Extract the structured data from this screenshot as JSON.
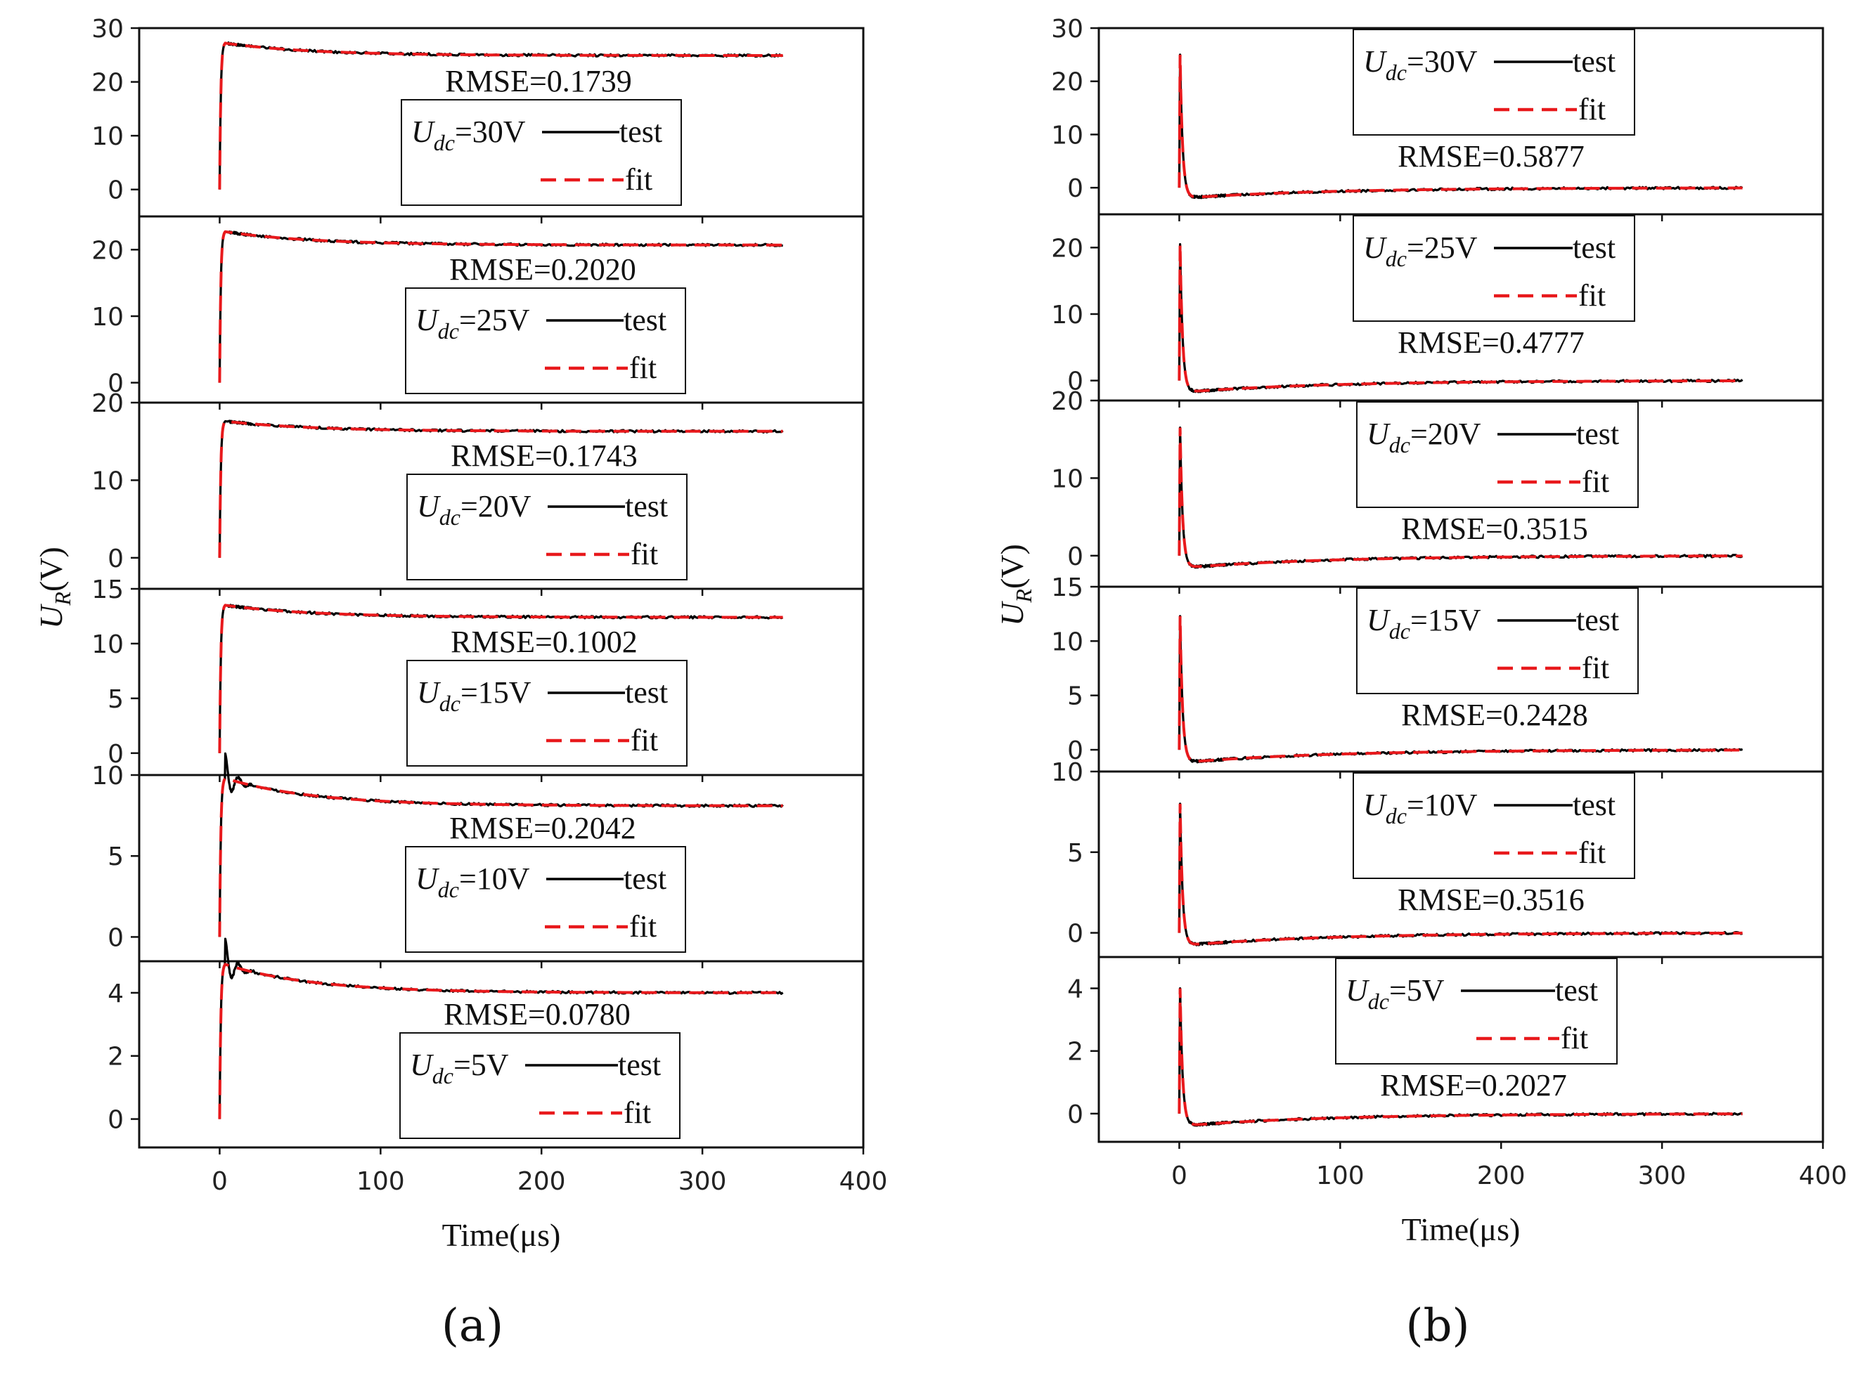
{
  "figure": {
    "panel_labels": [
      "(a)",
      "(b)"
    ],
    "xlabel": "Time(μs)",
    "ylabel_main": "U",
    "ylabel_sub": "R",
    "ylabel_unit": "(V)",
    "legend_symbol_main": "U",
    "legend_symbol_sub": "dc",
    "colors": {
      "test": "#000000",
      "fit": "#e8191c"
    }
  },
  "chart_data": [
    {
      "type": "line",
      "panel": "(a)",
      "xlabel": "Time(μs)",
      "ylabel": "U_R(V)",
      "xlim": [
        -50,
        400
      ],
      "xticks": [
        0,
        100,
        200,
        300,
        400
      ],
      "series_names": [
        "test",
        "fit"
      ],
      "subplots": [
        {
          "udc": "=30V",
          "udc_value": 30,
          "rmse": "RMSE=0.1739",
          "ylim": [
            -5,
            30
          ],
          "yticks": [
            0,
            10,
            20,
            30
          ],
          "peak": 27.2,
          "steady": 24.9
        },
        {
          "udc": "=25V",
          "udc_value": 25,
          "rmse": "RMSE=0.2020",
          "ylim": [
            -3,
            25
          ],
          "yticks": [
            0,
            10,
            20
          ],
          "peak": 22.7,
          "steady": 20.7
        },
        {
          "udc": "=20V",
          "udc_value": 20,
          "rmse": "RMSE=0.1743",
          "ylim": [
            -4,
            20
          ],
          "yticks": [
            0,
            10,
            20
          ],
          "peak": 17.6,
          "steady": 16.3
        },
        {
          "udc": "=15V",
          "udc_value": 15,
          "rmse": "RMSE=0.1002",
          "ylim": [
            -2,
            15
          ],
          "yticks": [
            0,
            5,
            10,
            15
          ],
          "peak": 13.5,
          "steady": 12.4
        },
        {
          "udc": "=10V",
          "udc_value": 10,
          "rmse": "RMSE=0.2042",
          "ylim": [
            -1.5,
            10
          ],
          "yticks": [
            0,
            5,
            10
          ],
          "peak": 9.8,
          "steady": 8.1
        },
        {
          "udc": "=5V",
          "udc_value": 5,
          "rmse": "RMSE=0.0780",
          "ylim": [
            -0.9,
            5
          ],
          "yticks": [
            0,
            2,
            4
          ],
          "peak": 4.9,
          "steady": 4.0
        }
      ]
    },
    {
      "type": "line",
      "panel": "(b)",
      "xlabel": "Time(μs)",
      "ylabel": "U_R(V)",
      "xlim": [
        -50,
        400
      ],
      "xticks": [
        0,
        100,
        200,
        300,
        400
      ],
      "series_names": [
        "test",
        "fit"
      ],
      "subplots": [
        {
          "udc": "=30V",
          "udc_value": 30,
          "rmse": "RMSE=0.5877",
          "ylim": [
            -5,
            30
          ],
          "yticks": [
            0,
            10,
            20,
            30
          ],
          "spike": 25.0,
          "undershoot": -2.0
        },
        {
          "udc": "=25V",
          "udc_value": 25,
          "rmse": "RMSE=0.4777",
          "ylim": [
            -3,
            25
          ],
          "yticks": [
            0,
            10,
            20
          ],
          "spike": 20.5,
          "undershoot": -1.8
        },
        {
          "udc": "=20V",
          "udc_value": 20,
          "rmse": "RMSE=0.3515",
          "ylim": [
            -4,
            20
          ],
          "yticks": [
            0,
            10,
            20
          ],
          "spike": 16.5,
          "undershoot": -1.6
        },
        {
          "udc": "=15V",
          "udc_value": 15,
          "rmse": "RMSE=0.2428",
          "ylim": [
            -2,
            15
          ],
          "yticks": [
            0,
            5,
            10,
            15
          ],
          "spike": 12.3,
          "undershoot": -1.2
        },
        {
          "udc": "=10V",
          "udc_value": 10,
          "rmse": "RMSE=0.3516",
          "ylim": [
            -1.5,
            10
          ],
          "yticks": [
            0,
            5,
            10
          ],
          "spike": 8.0,
          "undershoot": -0.8
        },
        {
          "udc": "=5V",
          "udc_value": 5,
          "rmse": "RMSE=0.2027",
          "ylim": [
            -0.9,
            5
          ],
          "yticks": [
            0,
            2,
            4
          ],
          "spike": 4.0,
          "undershoot": -0.4
        }
      ]
    }
  ]
}
